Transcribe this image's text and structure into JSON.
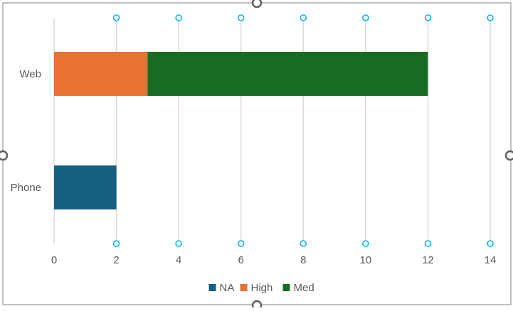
{
  "chart_data": {
    "type": "bar",
    "orientation": "horizontal",
    "stacked": true,
    "categories": [
      "Web",
      "Phone"
    ],
    "series": [
      {
        "name": "NA",
        "color": "#156082",
        "values": [
          0,
          2
        ]
      },
      {
        "name": "High",
        "color": "#E97132",
        "values": [
          3,
          0
        ]
      },
      {
        "name": "Med",
        "color": "#196B24",
        "values": [
          9,
          0
        ]
      }
    ],
    "xlim": [
      0,
      14
    ],
    "xticks": [
      "0",
      "2",
      "4",
      "6",
      "8",
      "10",
      "12",
      "14"
    ],
    "grid": true,
    "legend_position": "bottom"
  },
  "colors": {
    "gridline": "#D9D9D9",
    "axis_text": "#595959",
    "selection_handle": "#00B0F0"
  }
}
